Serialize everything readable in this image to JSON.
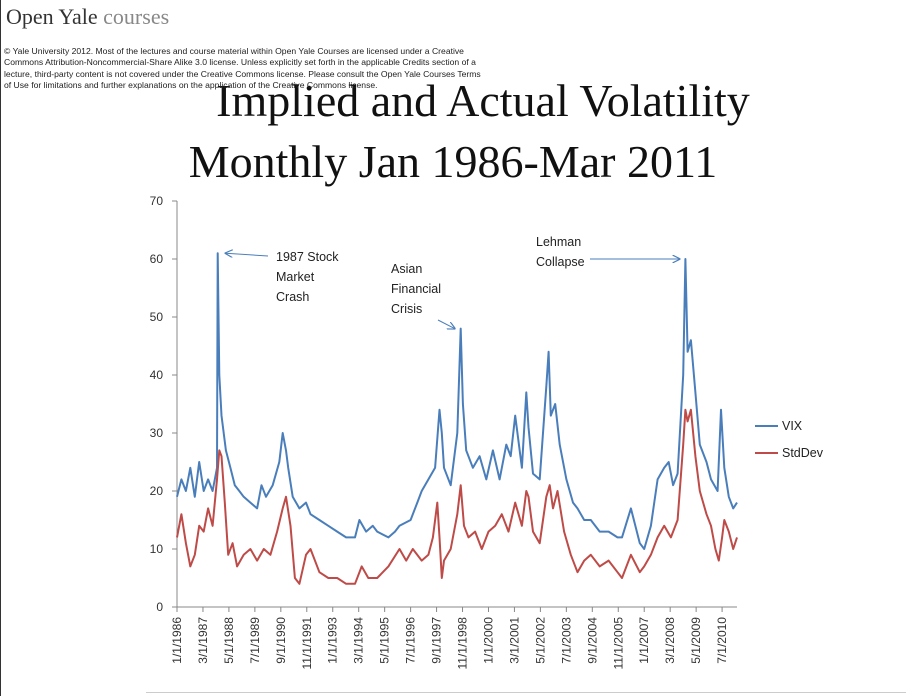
{
  "brand": {
    "name": "Open Yale",
    "suffix": " courses"
  },
  "license_text": "© Yale University 2012. Most of the lectures and course material within Open Yale Courses are licensed under a Creative Commons Attribution-Noncommercial-Share Alike 3.0 license. Unless explicitly set forth in the applicable Credits section of a lecture, third-party content is not covered under the Creative Commons license. Please consult the Open Yale Courses Terms of Use for limitations and further explanations on the application of the Creative Commons license.",
  "slide_title_line1": "Implied and Actual Volatility",
  "slide_title_line2": "Monthly Jan 1986-Mar 2011",
  "colors": {
    "vix": "#4a7ebb",
    "stddev": "#be4b48"
  },
  "chart_data": {
    "type": "line",
    "title": "Implied and Actual Volatility Monthly Jan 1986-Mar 2011",
    "ylim": [
      0,
      70
    ],
    "yticks": [
      0,
      10,
      20,
      30,
      40,
      50,
      60,
      70
    ],
    "x_tick_labels": [
      "1/1/1986",
      "3/1/1987",
      "5/1/1988",
      "7/1/1989",
      "9/1/1990",
      "11/1/1991",
      "1/1/1993",
      "3/1/1994",
      "5/1/1995",
      "7/1/1996",
      "9/1/1997",
      "11/1/1998",
      "1/1/2000",
      "3/1/2001",
      "5/1/2002",
      "7/1/2003",
      "9/1/2004",
      "11/1/2005",
      "1/1/2007",
      "3/1/2008",
      "5/1/2009",
      "7/1/2010"
    ],
    "x_start_year": 1986.0,
    "x_end_year": 2011.17,
    "series": [
      {
        "name": "VIX",
        "points": [
          [
            1986.0,
            19
          ],
          [
            1986.2,
            22
          ],
          [
            1986.4,
            20
          ],
          [
            1986.6,
            24
          ],
          [
            1986.8,
            19
          ],
          [
            1987.0,
            25
          ],
          [
            1987.2,
            20
          ],
          [
            1987.4,
            22
          ],
          [
            1987.6,
            20
          ],
          [
            1987.8,
            24
          ],
          [
            1987.83,
            61
          ],
          [
            1987.9,
            40
          ],
          [
            1988.0,
            33
          ],
          [
            1988.2,
            27
          ],
          [
            1988.4,
            24
          ],
          [
            1988.6,
            21
          ],
          [
            1988.8,
            20
          ],
          [
            1989.0,
            19
          ],
          [
            1989.3,
            18
          ],
          [
            1989.6,
            17
          ],
          [
            1989.8,
            21
          ],
          [
            1990.0,
            19
          ],
          [
            1990.3,
            21
          ],
          [
            1990.6,
            25
          ],
          [
            1990.75,
            30
          ],
          [
            1990.9,
            27
          ],
          [
            1991.0,
            24
          ],
          [
            1991.2,
            19
          ],
          [
            1991.5,
            17
          ],
          [
            1991.8,
            18
          ],
          [
            1992.0,
            16
          ],
          [
            1992.4,
            15
          ],
          [
            1992.8,
            14
          ],
          [
            1993.2,
            13
          ],
          [
            1993.6,
            12
          ],
          [
            1994.0,
            12
          ],
          [
            1994.2,
            15
          ],
          [
            1994.5,
            13
          ],
          [
            1994.8,
            14
          ],
          [
            1995.0,
            13
          ],
          [
            1995.5,
            12
          ],
          [
            1995.8,
            13
          ],
          [
            1996.0,
            14
          ],
          [
            1996.5,
            15
          ],
          [
            1996.8,
            18
          ],
          [
            1997.0,
            20
          ],
          [
            1997.3,
            22
          ],
          [
            1997.6,
            24
          ],
          [
            1997.8,
            34
          ],
          [
            1997.9,
            30
          ],
          [
            1998.0,
            24
          ],
          [
            1998.3,
            21
          ],
          [
            1998.6,
            30
          ],
          [
            1998.75,
            48
          ],
          [
            1998.85,
            35
          ],
          [
            1999.0,
            27
          ],
          [
            1999.3,
            24
          ],
          [
            1999.6,
            26
          ],
          [
            1999.9,
            22
          ],
          [
            2000.2,
            27
          ],
          [
            2000.5,
            22
          ],
          [
            2000.8,
            28
          ],
          [
            2001.0,
            26
          ],
          [
            2001.2,
            33
          ],
          [
            2001.5,
            24
          ],
          [
            2001.7,
            37
          ],
          [
            2001.8,
            31
          ],
          [
            2002.0,
            23
          ],
          [
            2002.3,
            22
          ],
          [
            2002.6,
            38
          ],
          [
            2002.7,
            44
          ],
          [
            2002.8,
            33
          ],
          [
            2003.0,
            35
          ],
          [
            2003.2,
            28
          ],
          [
            2003.5,
            22
          ],
          [
            2003.8,
            18
          ],
          [
            2004.0,
            17
          ],
          [
            2004.3,
            15
          ],
          [
            2004.6,
            15
          ],
          [
            2005.0,
            13
          ],
          [
            2005.4,
            13
          ],
          [
            2005.8,
            12
          ],
          [
            2006.0,
            12
          ],
          [
            2006.4,
            17
          ],
          [
            2006.8,
            11
          ],
          [
            2007.0,
            10
          ],
          [
            2007.3,
            14
          ],
          [
            2007.6,
            22
          ],
          [
            2007.9,
            24
          ],
          [
            2008.1,
            25
          ],
          [
            2008.3,
            21
          ],
          [
            2008.5,
            23
          ],
          [
            2008.75,
            40
          ],
          [
            2008.85,
            60
          ],
          [
            2008.95,
            44
          ],
          [
            2009.1,
            46
          ],
          [
            2009.3,
            37
          ],
          [
            2009.5,
            28
          ],
          [
            2009.8,
            25
          ],
          [
            2010.0,
            22
          ],
          [
            2010.3,
            20
          ],
          [
            2010.45,
            34
          ],
          [
            2010.6,
            24
          ],
          [
            2010.8,
            19
          ],
          [
            2011.0,
            17
          ],
          [
            2011.17,
            18
          ]
        ]
      },
      {
        "name": "StdDev",
        "points": [
          [
            1986.0,
            12
          ],
          [
            1986.2,
            16
          ],
          [
            1986.4,
            11
          ],
          [
            1986.6,
            7
          ],
          [
            1986.8,
            9
          ],
          [
            1987.0,
            14
          ],
          [
            1987.2,
            13
          ],
          [
            1987.4,
            17
          ],
          [
            1987.6,
            14
          ],
          [
            1987.8,
            22
          ],
          [
            1987.9,
            27
          ],
          [
            1988.0,
            26
          ],
          [
            1988.15,
            18
          ],
          [
            1988.3,
            9
          ],
          [
            1988.5,
            11
          ],
          [
            1988.7,
            7
          ],
          [
            1989.0,
            9
          ],
          [
            1989.3,
            10
          ],
          [
            1989.6,
            8
          ],
          [
            1989.9,
            10
          ],
          [
            1990.2,
            9
          ],
          [
            1990.5,
            13
          ],
          [
            1990.75,
            17
          ],
          [
            1990.9,
            19
          ],
          [
            1991.1,
            14
          ],
          [
            1991.3,
            5
          ],
          [
            1991.5,
            4
          ],
          [
            1991.8,
            9
          ],
          [
            1992.0,
            10
          ],
          [
            1992.4,
            6
          ],
          [
            1992.8,
            5
          ],
          [
            1993.2,
            5
          ],
          [
            1993.6,
            4
          ],
          [
            1994.0,
            4
          ],
          [
            1994.3,
            7
          ],
          [
            1994.6,
            5
          ],
          [
            1995.0,
            5
          ],
          [
            1995.5,
            7
          ],
          [
            1996.0,
            10
          ],
          [
            1996.3,
            8
          ],
          [
            1996.6,
            10
          ],
          [
            1997.0,
            8
          ],
          [
            1997.3,
            9
          ],
          [
            1997.5,
            12
          ],
          [
            1997.7,
            18
          ],
          [
            1997.8,
            12
          ],
          [
            1997.9,
            5
          ],
          [
            1998.0,
            8
          ],
          [
            1998.3,
            10
          ],
          [
            1998.6,
            16
          ],
          [
            1998.75,
            21
          ],
          [
            1998.9,
            14
          ],
          [
            1999.1,
            12
          ],
          [
            1999.4,
            13
          ],
          [
            1999.7,
            10
          ],
          [
            2000.0,
            13
          ],
          [
            2000.3,
            14
          ],
          [
            2000.6,
            16
          ],
          [
            2000.9,
            13
          ],
          [
            2001.2,
            18
          ],
          [
            2001.5,
            14
          ],
          [
            2001.7,
            20
          ],
          [
            2001.8,
            19
          ],
          [
            2002.0,
            13
          ],
          [
            2002.3,
            11
          ],
          [
            2002.6,
            19
          ],
          [
            2002.75,
            21
          ],
          [
            2002.9,
            17
          ],
          [
            2003.1,
            20
          ],
          [
            2003.4,
            13
          ],
          [
            2003.7,
            9
          ],
          [
            2004.0,
            6
          ],
          [
            2004.3,
            8
          ],
          [
            2004.6,
            9
          ],
          [
            2005.0,
            7
          ],
          [
            2005.4,
            8
          ],
          [
            2005.8,
            6
          ],
          [
            2006.0,
            5
          ],
          [
            2006.4,
            9
          ],
          [
            2006.8,
            6
          ],
          [
            2007.0,
            7
          ],
          [
            2007.3,
            9
          ],
          [
            2007.6,
            12
          ],
          [
            2007.9,
            14
          ],
          [
            2008.2,
            12
          ],
          [
            2008.5,
            15
          ],
          [
            2008.75,
            28
          ],
          [
            2008.85,
            34
          ],
          [
            2008.95,
            32
          ],
          [
            2009.1,
            34
          ],
          [
            2009.3,
            26
          ],
          [
            2009.5,
            20
          ],
          [
            2009.8,
            16
          ],
          [
            2010.0,
            14
          ],
          [
            2010.2,
            10
          ],
          [
            2010.35,
            8
          ],
          [
            2010.5,
            12
          ],
          [
            2010.6,
            15
          ],
          [
            2010.8,
            13
          ],
          [
            2011.0,
            10
          ],
          [
            2011.17,
            12
          ]
        ]
      }
    ],
    "annotations": [
      {
        "lines": [
          "1987 Stock",
          "Market",
          "Crash"
        ],
        "points_to_year": 1987.83,
        "points_to_value": 61
      },
      {
        "lines": [
          "Asian",
          "Financial",
          "Crisis"
        ],
        "points_to_year": 1998.75,
        "points_to_value": 48
      },
      {
        "lines": [
          "Lehman",
          "Collapse"
        ],
        "points_to_year": 2008.85,
        "points_to_value": 60
      }
    ],
    "legend": {
      "position": "right",
      "entries": [
        "VIX",
        "StdDev"
      ]
    }
  }
}
